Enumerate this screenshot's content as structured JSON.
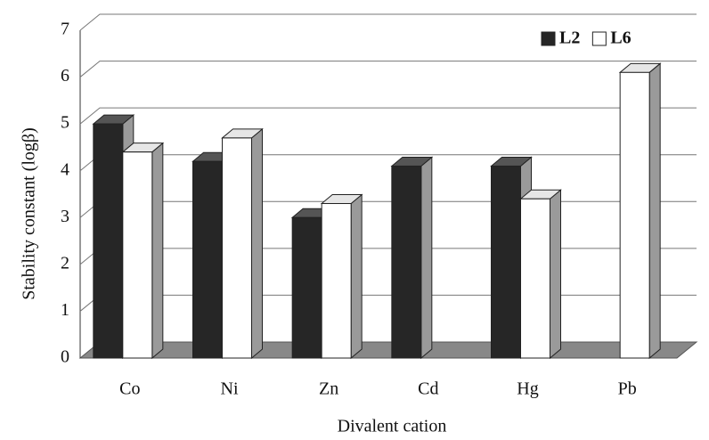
{
  "chart_data": {
    "type": "bar",
    "y_label": "Stability constant (logβ)",
    "x_label": "Divalent cation",
    "categories": [
      "Co",
      "Ni",
      "Zn",
      "Cd",
      "Hg",
      "Pb"
    ],
    "series": [
      {
        "name": "L2",
        "color": "#262626",
        "values": [
          5.0,
          4.2,
          3.0,
          4.1,
          4.1,
          null
        ]
      },
      {
        "name": "L6",
        "color": "#ffffff",
        "values": [
          4.4,
          4.7,
          3.3,
          null,
          3.4,
          6.1
        ]
      }
    ],
    "ylim": [
      0,
      7
    ],
    "yticks": [
      0,
      1,
      2,
      3,
      4,
      5,
      6,
      7
    ],
    "grid": true,
    "legend": "top-right"
  }
}
